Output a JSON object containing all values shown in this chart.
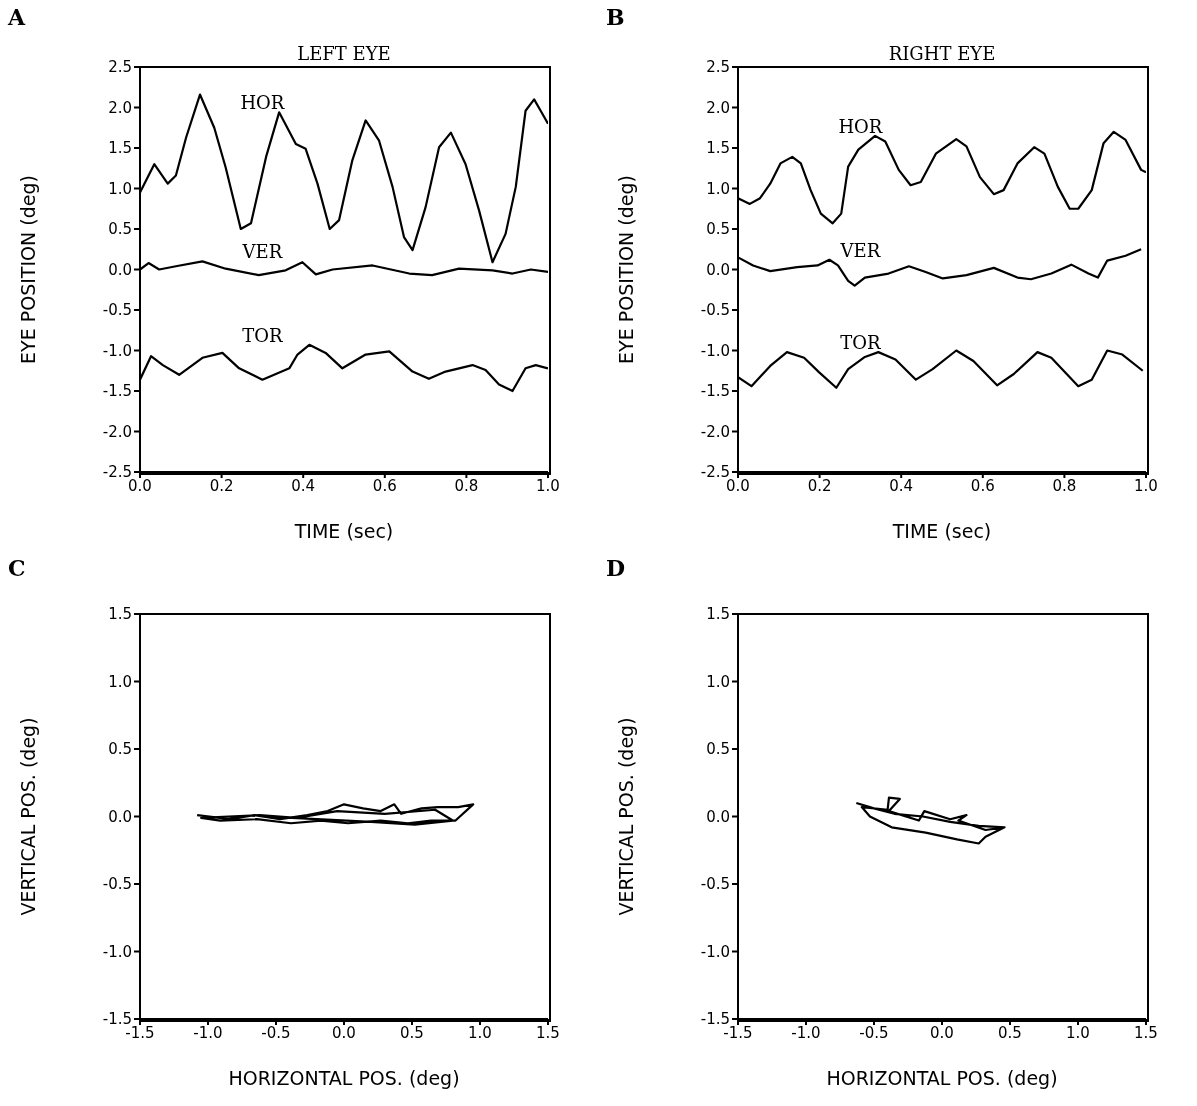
{
  "chart_data": [
    {
      "type": "line",
      "title": "LEFT EYE",
      "xlabel": "TIME (sec)",
      "ylabel": "EYE POSITION (deg)",
      "annotations": [
        "A"
      ],
      "xlim": [
        0,
        1
      ],
      "xticks": [
        {
          "value": 0,
          "label": "0.0"
        },
        {
          "value": 0.2,
          "label": "0.2"
        },
        {
          "value": 0.4,
          "label": "0.4"
        },
        {
          "value": 0.6,
          "label": "0.6"
        },
        {
          "value": 0.8,
          "label": "0.8"
        },
        {
          "value": 1,
          "label": "1.0"
        }
      ],
      "ylim": [
        -2.5,
        2.5
      ],
      "yticks": [
        {
          "value": -2.5,
          "label": "-2.5"
        },
        {
          "value": -2,
          "label": "-2.0"
        },
        {
          "value": -1.5,
          "label": "-1.5"
        },
        {
          "value": -1,
          "label": "-1.0"
        },
        {
          "value": -0.5,
          "label": "-0.5"
        },
        {
          "value": 0,
          "label": "0.0"
        },
        {
          "value": 0.5,
          "label": "0.5"
        },
        {
          "value": 1,
          "label": "1.0"
        },
        {
          "value": 1.5,
          "label": "1.5"
        },
        {
          "value": 2,
          "label": "2.0"
        },
        {
          "value": 2.5,
          "label": "2.5"
        }
      ],
      "series": [
        {
          "name": "HOR",
          "color": "#000000",
          "x": [
            0,
            0.035,
            0.068,
            0.088,
            0.113,
            0.147,
            0.182,
            0.21,
            0.247,
            0.272,
            0.309,
            0.341,
            0.382,
            0.406,
            0.435,
            0.465,
            0.488,
            0.52,
            0.553,
            0.586,
            0.619,
            0.647,
            0.668,
            0.7,
            0.733,
            0.762,
            0.798,
            0.831,
            0.864,
            0.896,
            0.921,
            0.945,
            0.966,
            0.982,
            1
          ],
          "values": [
            0.95,
            1.3,
            1.06,
            1.16,
            1.63,
            2.16,
            1.75,
            1.26,
            0.5,
            0.57,
            1.39,
            1.94,
            1.55,
            1.49,
            1.06,
            0.5,
            0.61,
            1.34,
            1.84,
            1.59,
            1.02,
            0.4,
            0.24,
            0.77,
            1.51,
            1.69,
            1.3,
            0.73,
            0.09,
            0.44,
            1.02,
            1.96,
            2.1,
            1.96,
            1.8
          ]
        },
        {
          "name": "VER",
          "color": "#000000",
          "x": [
            0,
            0.021,
            0.047,
            0.088,
            0.153,
            0.21,
            0.291,
            0.357,
            0.398,
            0.431,
            0.472,
            0.57,
            0.66,
            0.716,
            0.782,
            0.864,
            0.913,
            0.958,
            1
          ],
          "values": [
            0,
            0.08,
            0,
            0.04,
            0.1,
            0.01,
            -0.07,
            -0.01,
            0.09,
            -0.06,
            0,
            0.05,
            -0.05,
            -0.07,
            0.01,
            -0.01,
            -0.05,
            0,
            -0.03
          ]
        },
        {
          "name": "TOR",
          "color": "#000000",
          "x": [
            0,
            0.027,
            0.056,
            0.096,
            0.153,
            0.202,
            0.243,
            0.3,
            0.366,
            0.386,
            0.415,
            0.455,
            0.496,
            0.553,
            0.611,
            0.668,
            0.708,
            0.749,
            0.815,
            0.847,
            0.88,
            0.913,
            0.945,
            0.97,
            1
          ],
          "values": [
            -1.36,
            -1.07,
            -1.18,
            -1.3,
            -1.09,
            -1.03,
            -1.22,
            -1.36,
            -1.22,
            -1.05,
            -0.93,
            -1.03,
            -1.22,
            -1.05,
            -1.01,
            -1.26,
            -1.35,
            -1.26,
            -1.18,
            -1.24,
            -1.42,
            -1.5,
            -1.22,
            -1.18,
            -1.22
          ]
        }
      ]
    },
    {
      "type": "line",
      "title": "RIGHT EYE",
      "xlabel": "TIME (sec)",
      "ylabel": "EYE POSITION (deg)",
      "annotations": [
        "B"
      ],
      "xlim": [
        0,
        1
      ],
      "xticks": [
        {
          "value": 0,
          "label": "0.0"
        },
        {
          "value": 0.2,
          "label": "0.2"
        },
        {
          "value": 0.4,
          "label": "0.4"
        },
        {
          "value": 0.6,
          "label": "0.6"
        },
        {
          "value": 0.8,
          "label": "0.8"
        },
        {
          "value": 1,
          "label": "1.0"
        }
      ],
      "ylim": [
        -2.5,
        2.5
      ],
      "yticks": [
        {
          "value": -2.5,
          "label": "-2.5"
        },
        {
          "value": -2,
          "label": "-2.0"
        },
        {
          "value": -1.5,
          "label": "-1.5"
        },
        {
          "value": -1,
          "label": "-1.0"
        },
        {
          "value": -0.5,
          "label": "-0.5"
        },
        {
          "value": 0,
          "label": "0.0"
        },
        {
          "value": 0.5,
          "label": "0.5"
        },
        {
          "value": 1,
          "label": "1.0"
        },
        {
          "value": 1.5,
          "label": "1.5"
        },
        {
          "value": 2,
          "label": "2.0"
        },
        {
          "value": 2.5,
          "label": "2.5"
        }
      ],
      "series": [
        {
          "name": "HOR",
          "color": "#000000",
          "x": [
            0,
            0.029,
            0.054,
            0.079,
            0.104,
            0.133,
            0.154,
            0.178,
            0.203,
            0.232,
            0.253,
            0.27,
            0.295,
            0.336,
            0.361,
            0.394,
            0.423,
            0.448,
            0.485,
            0.535,
            0.56,
            0.593,
            0.627,
            0.651,
            0.685,
            0.726,
            0.751,
            0.784,
            0.813,
            0.834,
            0.867,
            0.896,
            0.921,
            0.95,
            0.988,
            1
          ],
          "values": [
            0.88,
            0.81,
            0.88,
            1.06,
            1.31,
            1.39,
            1.31,
            0.98,
            0.69,
            0.57,
            0.69,
            1.27,
            1.48,
            1.65,
            1.58,
            1.23,
            1.04,
            1.08,
            1.43,
            1.61,
            1.52,
            1.14,
            0.93,
            0.98,
            1.31,
            1.51,
            1.43,
            1.02,
            0.75,
            0.75,
            0.98,
            1.56,
            1.7,
            1.6,
            1.23,
            1.2
          ]
        },
        {
          "name": "VER",
          "color": "#000000",
          "x": [
            0,
            0.037,
            0.079,
            0.145,
            0.195,
            0.224,
            0.245,
            0.27,
            0.286,
            0.311,
            0.369,
            0.419,
            0.46,
            0.502,
            0.56,
            0.627,
            0.685,
            0.718,
            0.768,
            0.817,
            0.859,
            0.882,
            0.905,
            0.95,
            0.988
          ],
          "values": [
            0.15,
            0.05,
            -0.02,
            0.03,
            0.05,
            0.12,
            0.05,
            -0.14,
            -0.2,
            -0.1,
            -0.05,
            0.04,
            -0.03,
            -0.11,
            -0.07,
            0.02,
            -0.1,
            -0.12,
            -0.05,
            0.06,
            -0.05,
            -0.1,
            0.11,
            0.17,
            0.25
          ]
        },
        {
          "name": "TOR",
          "color": "#000000",
          "x": [
            0,
            0.033,
            0.079,
            0.12,
            0.162,
            0.199,
            0.241,
            0.27,
            0.311,
            0.344,
            0.386,
            0.436,
            0.477,
            0.535,
            0.577,
            0.635,
            0.676,
            0.734,
            0.768,
            0.834,
            0.867,
            0.905,
            0.942,
            0.992
          ],
          "values": [
            -1.33,
            -1.44,
            -1.19,
            -1.02,
            -1.09,
            -1.27,
            -1.46,
            -1.23,
            -1.08,
            -1.02,
            -1.11,
            -1.36,
            -1.23,
            -1,
            -1.13,
            -1.43,
            -1.29,
            -1.02,
            -1.09,
            -1.44,
            -1.36,
            -1,
            -1.05,
            -1.25
          ]
        }
      ]
    },
    {
      "type": "line",
      "xlabel": "HORIZONTAL POS. (deg)",
      "ylabel": "VERTICAL POS. (deg)",
      "annotations": [
        "C"
      ],
      "xlim": [
        -1.5,
        1.5
      ],
      "xticks": [
        {
          "value": -1.5,
          "label": "-1.5"
        },
        {
          "value": -1,
          "label": "-1.0"
        },
        {
          "value": -0.5,
          "label": "-0.5"
        },
        {
          "value": 0,
          "label": "0.0"
        },
        {
          "value": 0.5,
          "label": "0.5"
        },
        {
          "value": 1,
          "label": "1.0"
        },
        {
          "value": 1.5,
          "label": "1.5"
        }
      ],
      "ylim": [
        -1.5,
        1.5
      ],
      "yticks": [
        {
          "value": -1.5,
          "label": "-1.5"
        },
        {
          "value": -1,
          "label": "-1.0"
        },
        {
          "value": -0.5,
          "label": "-0.5"
        },
        {
          "value": 0,
          "label": "0.0"
        },
        {
          "value": 0.5,
          "label": "0.5"
        },
        {
          "value": 1,
          "label": "1.0"
        },
        {
          "value": 1.5,
          "label": "1.5"
        }
      ],
      "series": [
        {
          "color": "#000000",
          "x": [
            -1.08,
            -0.84,
            -0.66,
            -0.47,
            -0.27,
            -0.12,
            0,
            0.14,
            0.27,
            0.37,
            0.42,
            0.57,
            0.69,
            0.84,
            0.95,
            0.82,
            0.64,
            0.47,
            0.27,
            0.03,
            -0.17,
            -0.39,
            -0.64,
            -0.91,
            -1.05,
            -0.62,
            -0.35,
            -0.05,
            0.3,
            0.67,
            0.8,
            0.52,
            0.2,
            -0.2,
            -0.6
          ],
          "values": [
            0.01,
            -0.02,
            0.01,
            -0.02,
            0.01,
            0.04,
            0.09,
            0.06,
            0.04,
            0.09,
            0.02,
            0.06,
            0.07,
            0.07,
            0.09,
            -0.03,
            -0.03,
            -0.05,
            -0.03,
            -0.05,
            -0.03,
            -0.05,
            -0.02,
            -0.03,
            -0.01,
            0.01,
            -0.01,
            0.04,
            0.02,
            0.05,
            -0.03,
            -0.06,
            -0.04,
            -0.02,
            0
          ]
        }
      ]
    },
    {
      "type": "line",
      "xlabel": "HORIZONTAL POS. (deg)",
      "ylabel": "VERTICAL POS. (deg)",
      "annotations": [
        "D"
      ],
      "xlim": [
        -1.5,
        1.5
      ],
      "xticks": [
        {
          "value": -1.5,
          "label": "-1.5"
        },
        {
          "value": -1,
          "label": "-1.0"
        },
        {
          "value": -0.5,
          "label": "-0.5"
        },
        {
          "value": 0,
          "label": "0.0"
        },
        {
          "value": 0.5,
          "label": "0.5"
        },
        {
          "value": 1,
          "label": "1.0"
        },
        {
          "value": 1.5,
          "label": "1.5"
        }
      ],
      "ylim": [
        -1.5,
        1.5
      ],
      "yticks": [
        {
          "value": -1.5,
          "label": "-1.5"
        },
        {
          "value": -1,
          "label": "-1.0"
        },
        {
          "value": -0.5,
          "label": "-0.5"
        },
        {
          "value": 0,
          "label": "0.0"
        },
        {
          "value": 0.5,
          "label": "0.5"
        },
        {
          "value": 1,
          "label": "1.0"
        },
        {
          "value": 1.5,
          "label": "1.5"
        }
      ],
      "series": [
        {
          "color": "#000000",
          "x": [
            -0.63,
            -0.5,
            -0.35,
            -0.14,
            0.06,
            0.27,
            0.46,
            0.32,
            0.27,
            0.11,
            -0.12,
            -0.37,
            -0.53,
            -0.59,
            -0.4,
            -0.39,
            -0.31,
            -0.39,
            -0.17,
            -0.13,
            0.06,
            0.18,
            0.12,
            0.32,
            0.46
          ],
          "values": [
            0.1,
            0.06,
            0.02,
            0,
            -0.04,
            -0.07,
            -0.08,
            -0.15,
            -0.2,
            -0.17,
            -0.12,
            -0.08,
            0,
            0.07,
            0.05,
            0.14,
            0.13,
            0.04,
            -0.03,
            0.04,
            -0.02,
            0.01,
            -0.03,
            -0.1,
            -0.08
          ]
        }
      ]
    }
  ]
}
